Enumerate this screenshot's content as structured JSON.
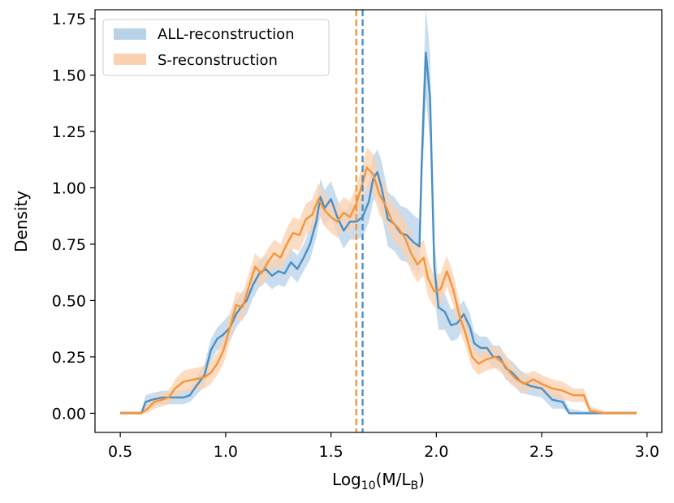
{
  "chart_data": {
    "type": "line",
    "xlabel": "Log₁₀(M/Lʙ)",
    "xlabel_parts": {
      "base": "Log",
      "sub": "10",
      "mid": "(M/L",
      "sub2": "B",
      "end": ")"
    },
    "ylabel": "Density",
    "xlim": [
      0.38,
      3.07
    ],
    "ylim": [
      -0.085,
      1.79
    ],
    "xticks": [
      0.5,
      1.0,
      1.5,
      2.0,
      2.5,
      3.0
    ],
    "xtick_labels": [
      "0.5",
      "1.0",
      "1.5",
      "2.0",
      "2.5",
      "3.0"
    ],
    "yticks": [
      0.0,
      0.25,
      0.5,
      0.75,
      1.0,
      1.25,
      1.5,
      1.75
    ],
    "ytick_labels": [
      "0.00",
      "0.25",
      "0.50",
      "0.75",
      "1.00",
      "1.25",
      "1.50",
      "1.75"
    ],
    "grid": false,
    "legend_position": "top-left",
    "series": [
      {
        "name": "ALL-reconstruction",
        "color": "#4a8fc4",
        "band_color": "#b8d2e8",
        "mean_vline": 1.65,
        "points": [
          [
            0.5,
            0.0
          ],
          [
            0.6,
            0.0
          ],
          [
            0.62,
            0.05
          ],
          [
            0.65,
            0.06
          ],
          [
            0.7,
            0.07
          ],
          [
            0.75,
            0.07
          ],
          [
            0.8,
            0.07
          ],
          [
            0.83,
            0.08
          ],
          [
            0.86,
            0.12
          ],
          [
            0.9,
            0.17
          ],
          [
            0.93,
            0.28
          ],
          [
            0.96,
            0.33
          ],
          [
            0.99,
            0.35
          ],
          [
            1.02,
            0.38
          ],
          [
            1.05,
            0.44
          ],
          [
            1.08,
            0.48
          ],
          [
            1.1,
            0.5
          ],
          [
            1.13,
            0.57
          ],
          [
            1.16,
            0.62
          ],
          [
            1.19,
            0.64
          ],
          [
            1.22,
            0.61
          ],
          [
            1.25,
            0.63
          ],
          [
            1.28,
            0.62
          ],
          [
            1.31,
            0.67
          ],
          [
            1.34,
            0.64
          ],
          [
            1.37,
            0.69
          ],
          [
            1.4,
            0.75
          ],
          [
            1.43,
            0.85
          ],
          [
            1.45,
            0.96
          ],
          [
            1.47,
            0.91
          ],
          [
            1.5,
            0.95
          ],
          [
            1.53,
            0.87
          ],
          [
            1.56,
            0.81
          ],
          [
            1.59,
            0.85
          ],
          [
            1.62,
            0.85
          ],
          [
            1.65,
            0.87
          ],
          [
            1.68,
            0.94
          ],
          [
            1.7,
            1.04
          ],
          [
            1.72,
            1.07
          ],
          [
            1.74,
            1.0
          ],
          [
            1.77,
            0.86
          ],
          [
            1.8,
            0.84
          ],
          [
            1.83,
            0.8
          ],
          [
            1.86,
            0.79
          ],
          [
            1.89,
            0.76
          ],
          [
            1.92,
            0.74
          ],
          [
            1.93,
            1.1
          ],
          [
            1.95,
            1.6
          ],
          [
            1.97,
            1.4
          ],
          [
            1.99,
            0.65
          ],
          [
            2.01,
            0.47
          ],
          [
            2.04,
            0.45
          ],
          [
            2.07,
            0.39
          ],
          [
            2.1,
            0.4
          ],
          [
            2.13,
            0.44
          ],
          [
            2.16,
            0.38
          ],
          [
            2.18,
            0.31
          ],
          [
            2.21,
            0.29
          ],
          [
            2.24,
            0.29
          ],
          [
            2.27,
            0.25
          ],
          [
            2.3,
            0.25
          ],
          [
            2.33,
            0.2
          ],
          [
            2.36,
            0.18
          ],
          [
            2.4,
            0.14
          ],
          [
            2.45,
            0.12
          ],
          [
            2.5,
            0.11
          ],
          [
            2.55,
            0.06
          ],
          [
            2.6,
            0.05
          ],
          [
            2.63,
            0.0
          ],
          [
            2.7,
            0.0
          ],
          [
            2.8,
            0.0
          ],
          [
            2.95,
            0.0
          ]
        ],
        "band_halfwidth": [
          0.01,
          0.01,
          0.03,
          0.03,
          0.03,
          0.03,
          0.03,
          0.03,
          0.04,
          0.05,
          0.05,
          0.05,
          0.06,
          0.06,
          0.06,
          0.06,
          0.06,
          0.06,
          0.06,
          0.06,
          0.06,
          0.06,
          0.06,
          0.06,
          0.06,
          0.06,
          0.07,
          0.07,
          0.08,
          0.08,
          0.08,
          0.08,
          0.08,
          0.08,
          0.08,
          0.09,
          0.09,
          0.1,
          0.1,
          0.12,
          0.12,
          0.12,
          0.12,
          0.12,
          0.12,
          0.12,
          0.15,
          0.2,
          0.2,
          0.12,
          0.1,
          0.08,
          0.07,
          0.07,
          0.06,
          0.06,
          0.05,
          0.05,
          0.05,
          0.05,
          0.05,
          0.05,
          0.05,
          0.05,
          0.04,
          0.04,
          0.04,
          0.03,
          0.02,
          0.01,
          0.01,
          0.01
        ]
      },
      {
        "name": "S-reconstruction",
        "color": "#f5953a",
        "band_color": "#fbd2b0",
        "mean_vline": 1.62,
        "points": [
          [
            0.5,
            0.0
          ],
          [
            0.6,
            0.0
          ],
          [
            0.63,
            0.02
          ],
          [
            0.66,
            0.05
          ],
          [
            0.7,
            0.06
          ],
          [
            0.73,
            0.07
          ],
          [
            0.76,
            0.11
          ],
          [
            0.8,
            0.14
          ],
          [
            0.85,
            0.15
          ],
          [
            0.9,
            0.16
          ],
          [
            0.93,
            0.18
          ],
          [
            0.96,
            0.22
          ],
          [
            0.99,
            0.28
          ],
          [
            1.02,
            0.38
          ],
          [
            1.05,
            0.48
          ],
          [
            1.08,
            0.47
          ],
          [
            1.11,
            0.56
          ],
          [
            1.14,
            0.65
          ],
          [
            1.17,
            0.62
          ],
          [
            1.2,
            0.67
          ],
          [
            1.23,
            0.71
          ],
          [
            1.26,
            0.69
          ],
          [
            1.29,
            0.75
          ],
          [
            1.32,
            0.8
          ],
          [
            1.35,
            0.79
          ],
          [
            1.38,
            0.86
          ],
          [
            1.41,
            0.88
          ],
          [
            1.44,
            0.95
          ],
          [
            1.47,
            0.9
          ],
          [
            1.5,
            0.87
          ],
          [
            1.53,
            0.85
          ],
          [
            1.56,
            0.89
          ],
          [
            1.59,
            0.87
          ],
          [
            1.62,
            0.93
          ],
          [
            1.65,
            1.02
          ],
          [
            1.67,
            1.09
          ],
          [
            1.7,
            1.06
          ],
          [
            1.73,
            0.97
          ],
          [
            1.76,
            0.92
          ],
          [
            1.79,
            0.85
          ],
          [
            1.82,
            0.82
          ],
          [
            1.85,
            0.78
          ],
          [
            1.88,
            0.71
          ],
          [
            1.91,
            0.66
          ],
          [
            1.94,
            0.69
          ],
          [
            1.96,
            0.6
          ],
          [
            1.99,
            0.54
          ],
          [
            2.02,
            0.55
          ],
          [
            2.05,
            0.63
          ],
          [
            2.08,
            0.55
          ],
          [
            2.11,
            0.43
          ],
          [
            2.14,
            0.35
          ],
          [
            2.17,
            0.25
          ],
          [
            2.2,
            0.22
          ],
          [
            2.24,
            0.24
          ],
          [
            2.28,
            0.25
          ],
          [
            2.32,
            0.22
          ],
          [
            2.35,
            0.18
          ],
          [
            2.38,
            0.15
          ],
          [
            2.42,
            0.13
          ],
          [
            2.46,
            0.15
          ],
          [
            2.5,
            0.13
          ],
          [
            2.55,
            0.11
          ],
          [
            2.6,
            0.1
          ],
          [
            2.65,
            0.08
          ],
          [
            2.7,
            0.08
          ],
          [
            2.73,
            0.01
          ],
          [
            2.8,
            0.0
          ],
          [
            2.95,
            0.0
          ]
        ],
        "band_halfwidth": [
          0.01,
          0.01,
          0.02,
          0.03,
          0.03,
          0.03,
          0.04,
          0.05,
          0.05,
          0.05,
          0.05,
          0.05,
          0.06,
          0.06,
          0.06,
          0.06,
          0.06,
          0.06,
          0.06,
          0.06,
          0.06,
          0.06,
          0.07,
          0.07,
          0.07,
          0.07,
          0.07,
          0.07,
          0.07,
          0.07,
          0.07,
          0.07,
          0.07,
          0.08,
          0.08,
          0.09,
          0.09,
          0.09,
          0.08,
          0.08,
          0.08,
          0.08,
          0.08,
          0.08,
          0.08,
          0.08,
          0.07,
          0.07,
          0.07,
          0.07,
          0.06,
          0.06,
          0.05,
          0.05,
          0.05,
          0.05,
          0.05,
          0.05,
          0.04,
          0.04,
          0.04,
          0.04,
          0.04,
          0.04,
          0.03,
          0.03,
          0.02,
          0.01,
          0.01
        ]
      }
    ]
  }
}
